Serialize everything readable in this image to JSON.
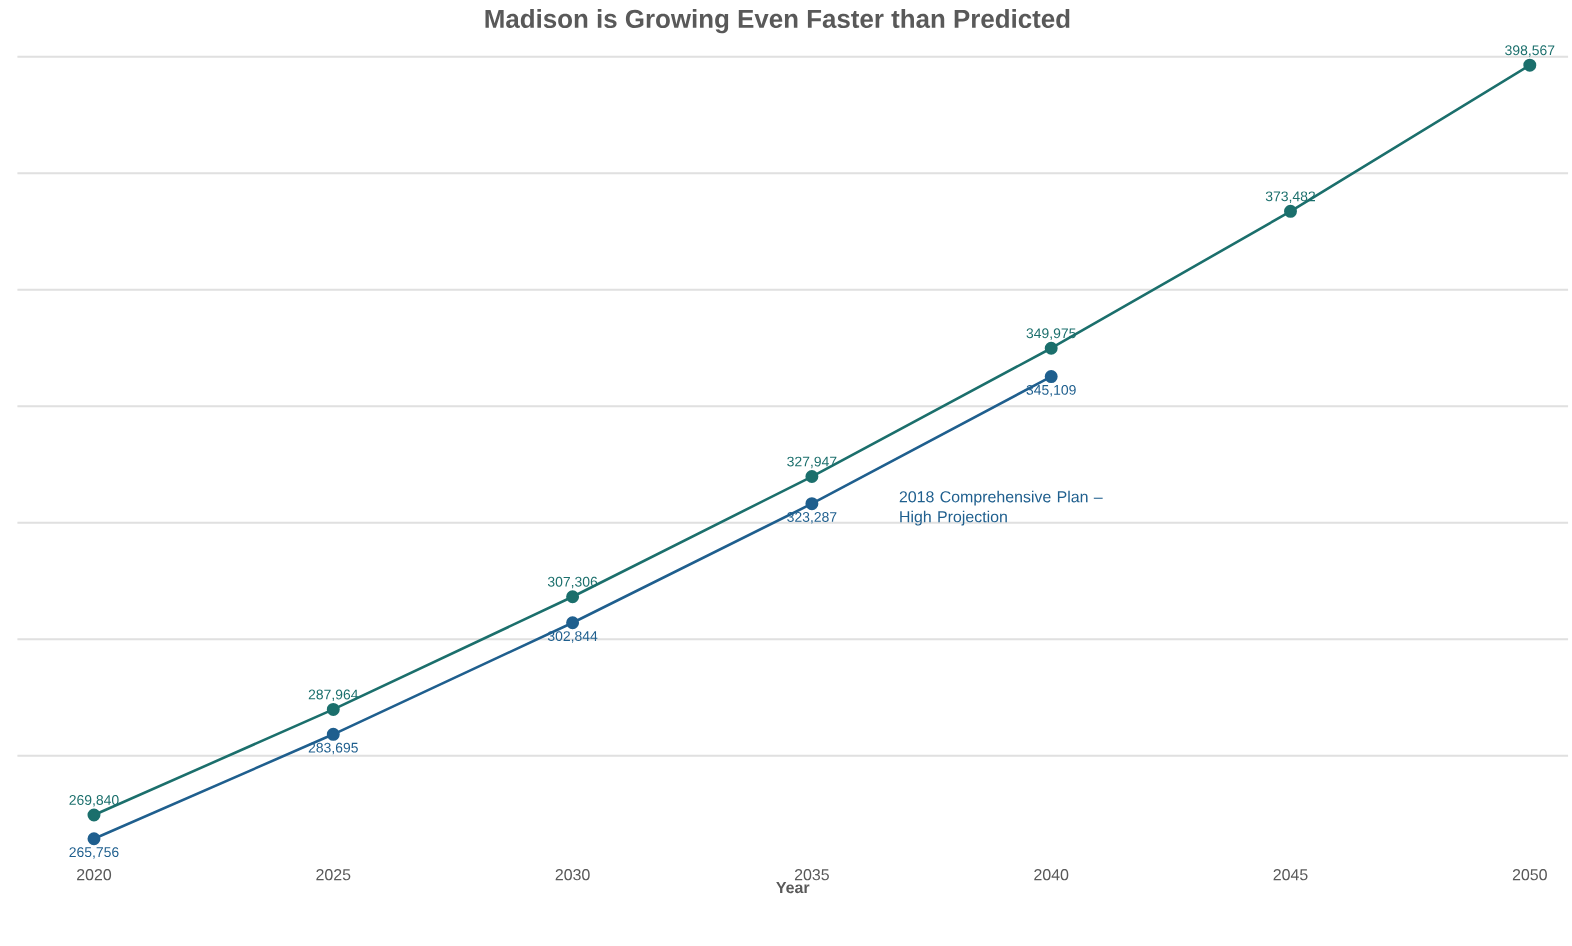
{
  "chart_data": {
    "type": "line",
    "title": "Madison is Growing Even Faster than Predicted",
    "xlabel": "Year",
    "x": [
      2020,
      2025,
      2030,
      2035,
      2040,
      2045,
      2050
    ],
    "series": [
      {
        "color": "#1b6f6c",
        "values": [
          269840,
          287964,
          307306,
          327947,
          349975,
          373482,
          398567
        ],
        "value_labels": [
          "269,840",
          "287,964",
          "307,306",
          "327,947",
          "349,975",
          "373,482",
          "398,567"
        ]
      },
      {
        "name": "2018 Comprehensive Plan – High Projection",
        "color": "#1f5f8e",
        "x": [
          2020,
          2025,
          2030,
          2035,
          2040
        ],
        "values": [
          265756,
          283695,
          302844,
          323287,
          345109
        ],
        "value_labels": [
          "265,756",
          "283,695",
          "302,844",
          "323,287",
          "345,109"
        ]
      }
    ],
    "xlim": [
      2018.4,
      2050.8
    ],
    "xticks": [
      2020,
      2025,
      2030,
      2035,
      2040,
      2045,
      2050
    ],
    "tick_labels": "x",
    "grid": "y",
    "marker": "circle",
    "line_style": "solid"
  }
}
